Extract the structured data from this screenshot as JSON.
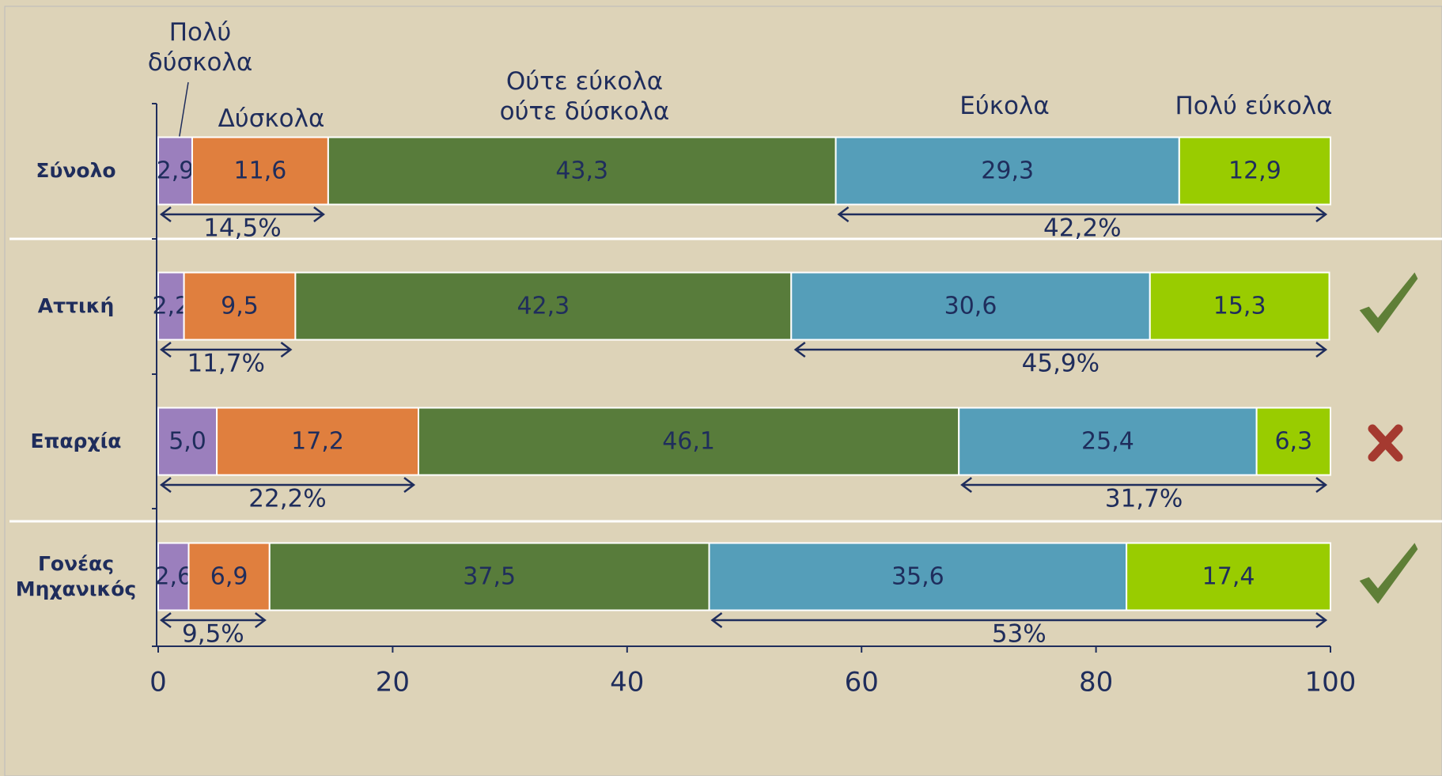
{
  "chart_data": {
    "type": "stacked-bar-horizontal",
    "categories": [
      "Σύνολο",
      "Αττική",
      "Επαρχία",
      "Γονέας Μηχανικός"
    ],
    "series": [
      {
        "name": "Πολύ δύσκολα",
        "color": "#9b7fbd",
        "values": [
          2.9,
          2.2,
          5.0,
          2.6
        ],
        "value_labels": [
          "2,9",
          "2,2",
          "5,0",
          "2,6"
        ]
      },
      {
        "name": "Δύσκολα",
        "color": "#e07f3e",
        "values": [
          11.6,
          9.5,
          17.2,
          6.9
        ],
        "value_labels": [
          "11,6",
          "9,5",
          "17,2",
          "6,9"
        ]
      },
      {
        "name": "Ούτε εύκολα ούτε δύσκολα",
        "color": "#587c3b",
        "values": [
          43.3,
          42.3,
          46.1,
          37.5
        ],
        "value_labels": [
          "43,3",
          "42,3",
          "46,1",
          "37,5"
        ]
      },
      {
        "name": "Εύκολα",
        "color": "#559eb9",
        "values": [
          29.3,
          30.6,
          25.4,
          35.6
        ],
        "value_labels": [
          "29,3",
          "30,6",
          "25,4",
          "35,6"
        ]
      },
      {
        "name": "Πολύ εύκολα",
        "color": "#99cc00",
        "values": [
          12.9,
          15.3,
          6.3,
          17.4
        ],
        "value_labels": [
          "12,9",
          "15,3",
          "6,3",
          "17,4"
        ]
      }
    ],
    "difficult_totals": {
      "values": [
        14.5,
        11.7,
        22.2,
        9.5
      ],
      "value_labels": [
        "14,5%",
        "11,7%",
        "22,2%",
        "9,5%"
      ]
    },
    "easy_totals": {
      "values": [
        42.2,
        45.9,
        31.7,
        53
      ],
      "value_labels": [
        "42,2%",
        "45,9%",
        "31,7%",
        "53%"
      ]
    },
    "xlim": [
      0,
      100
    ],
    "xticks": [
      0,
      20,
      40,
      60,
      80,
      100
    ]
  }
}
